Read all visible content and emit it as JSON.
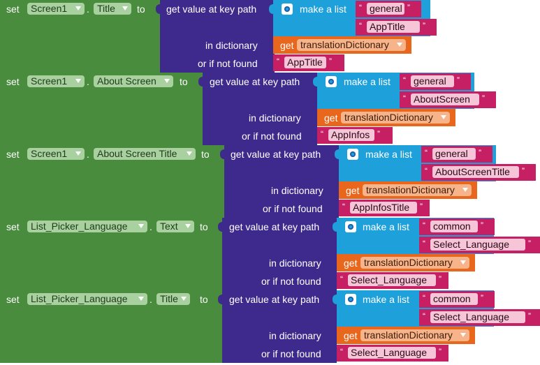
{
  "labels": {
    "set": "set",
    "dot": ".",
    "to": "to",
    "get_value": "get value at key path",
    "make_list": "make a list",
    "in_dictionary": "in dictionary",
    "or_if_not_found": "or if not found",
    "get": "get",
    "quote_open": "“",
    "quote_close": "”"
  },
  "blocks": [
    {
      "component": "Screen1",
      "property": "Title",
      "key1": "general",
      "key2": "AppTitle",
      "dictionary": "translationDictionary",
      "not_found": "AppTitle"
    },
    {
      "component": "Screen1",
      "property": "About Screen",
      "key1": "general",
      "key2": "AboutScreen",
      "dictionary": "translationDictionary",
      "not_found": "AppInfos"
    },
    {
      "component": "Screen1",
      "property": "About Screen Title",
      "key1": "general",
      "key2": "AboutScreenTitle",
      "dictionary": "translationDictionary",
      "not_found": "AppInfosTitle"
    },
    {
      "component": "List_Picker_Language",
      "property": "Text",
      "key1": "common",
      "key2": "Select_Language",
      "dictionary": "translationDictionary",
      "not_found": "Select_Language"
    },
    {
      "component": "List_Picker_Language",
      "property": "Title",
      "key1": "common",
      "key2": "Select_Language",
      "dictionary": "translationDictionary",
      "not_found": "Select_Language"
    }
  ],
  "icons": {
    "mutator": "gear-icon",
    "dropdown": "chevron-down-icon"
  },
  "colors": {
    "set_block": "#4a8c3e",
    "dictionary_block": "#3d2a8c",
    "list_block": "#1ea1db",
    "variable_block": "#e8671c",
    "text_block": "#c71f63"
  }
}
